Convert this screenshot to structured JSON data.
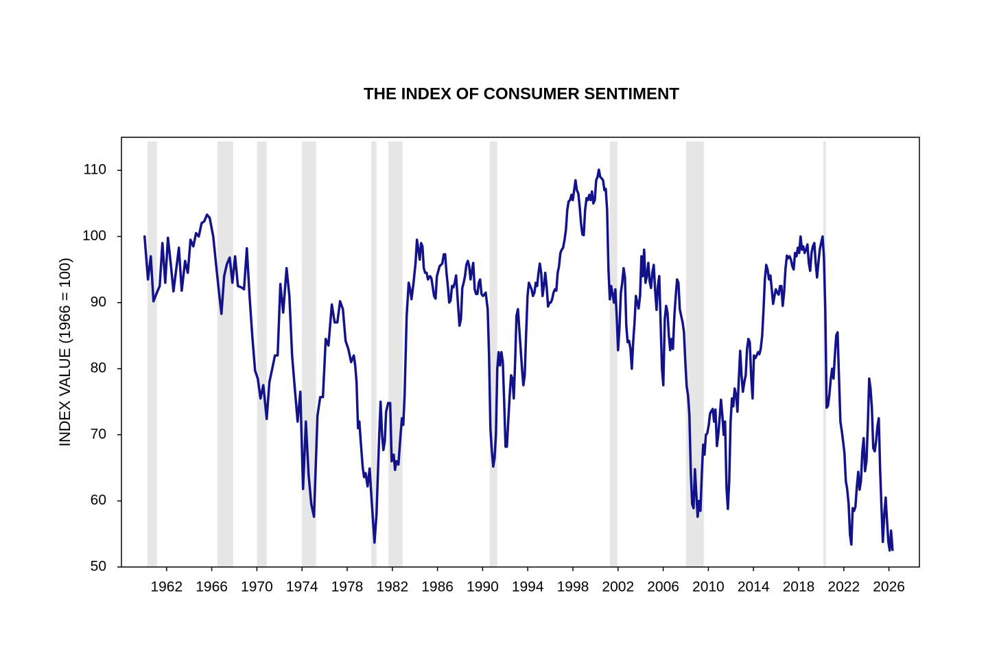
{
  "chart_data": {
    "type": "line",
    "title": "THE INDEX OF CONSUMER SENTIMENT",
    "y_label": "INDEX VALUE (1966 = 100)",
    "color": "#12128a",
    "shade_color": "#e6e6e6",
    "xlim": [
      1958,
      2028.7
    ],
    "ylim": [
      50,
      115
    ],
    "xticks": [
      1962,
      1966,
      1970,
      1974,
      1978,
      1982,
      1986,
      1990,
      1994,
      1998,
      2002,
      2006,
      2010,
      2014,
      2018,
      2022,
      2026
    ],
    "yticks": [
      50,
      60,
      70,
      80,
      90,
      100,
      110
    ],
    "shading": [
      [
        1960.3,
        1961.15
      ],
      [
        1966.5,
        1967.9
      ],
      [
        1970.02,
        1970.87
      ],
      [
        1973.98,
        1975.25
      ],
      [
        1980.12,
        1980.6
      ],
      [
        1981.64,
        1982.91
      ],
      [
        1990.63,
        1991.3
      ],
      [
        2001.27,
        2001.94
      ],
      [
        2008.02,
        2009.6
      ],
      [
        2020.18,
        2020.42
      ]
    ],
    "x": [
      1960.05,
      1960.35,
      1960.6,
      1960.84,
      1961.14,
      1961.39,
      1961.63,
      1961.88,
      1962.12,
      1962.36,
      1962.61,
      1962.85,
      1963.09,
      1963.34,
      1963.64,
      1963.88,
      1964.12,
      1964.37,
      1964.61,
      1964.85,
      1965.1,
      1965.34,
      1965.58,
      1965.82,
      1966.13,
      1966.43,
      1966.68,
      1966.86,
      1967.1,
      1967.34,
      1967.59,
      1967.83,
      1968.07,
      1968.32,
      1968.62,
      1968.86,
      1969.11,
      1969.35,
      1969.59,
      1969.84,
      1970.08,
      1970.32,
      1970.57,
      1970.87,
      1971.11,
      1971.36,
      1971.6,
      1971.84,
      1972.08,
      1972.33,
      1972.63,
      1972.88,
      1973.12,
      1973.36,
      1973.61,
      1973.85,
      1974.09,
      1974.34,
      1974.58,
      1974.82,
      1975.06,
      1975.37,
      1975.61,
      1975.85,
      1976.1,
      1976.34,
      1976.64,
      1976.89,
      1977.13,
      1977.37,
      1977.62,
      1977.86,
      1978.1,
      1978.35,
      1978.59,
      1978.71,
      1978.83,
      1978.96,
      1979.08,
      1979.2,
      1979.38,
      1979.5,
      1979.63,
      1979.81,
      1979.99,
      1980.17,
      1980.42,
      1980.6,
      1980.84,
      1980.96,
      1981.09,
      1981.21,
      1981.33,
      1981.45,
      1981.63,
      1981.81,
      1981.94,
      1982.12,
      1982.24,
      1982.36,
      1982.54,
      1982.73,
      1982.85,
      1982.97,
      1983.09,
      1983.27,
      1983.45,
      1983.58,
      1983.7,
      1983.88,
      1984.06,
      1984.18,
      1984.31,
      1984.43,
      1984.55,
      1984.67,
      1984.79,
      1984.91,
      1985.04,
      1985.16,
      1985.34,
      1985.46,
      1985.7,
      1985.83,
      1985.95,
      1986.19,
      1986.43,
      1986.56,
      1986.68,
      1986.8,
      1986.92,
      1987.04,
      1987.16,
      1987.29,
      1987.41,
      1987.53,
      1987.65,
      1987.77,
      1987.95,
      1988.08,
      1988.2,
      1988.32,
      1988.44,
      1988.56,
      1988.69,
      1988.81,
      1988.93,
      1989.05,
      1989.17,
      1989.3,
      1989.42,
      1989.54,
      1989.66,
      1989.78,
      1989.9,
      1990.03,
      1990.15,
      1990.27,
      1990.45,
      1990.57,
      1990.69,
      1990.81,
      1990.94,
      1991.06,
      1991.18,
      1991.3,
      1991.42,
      1991.54,
      1991.67,
      1991.79,
      1991.91,
      1992.03,
      1992.15,
      1992.27,
      1992.4,
      1992.52,
      1992.64,
      1992.76,
      1992.88,
      1993.0,
      1993.13,
      1993.25,
      1993.37,
      1993.49,
      1993.61,
      1993.73,
      1993.85,
      1993.98,
      1994.1,
      1994.22,
      1994.34,
      1994.46,
      1994.59,
      1994.71,
      1994.83,
      1994.95,
      1995.07,
      1995.19,
      1995.31,
      1995.43,
      1995.55,
      1995.67,
      1995.8,
      1995.92,
      1996.04,
      1996.16,
      1996.28,
      1996.4,
      1996.53,
      1996.65,
      1996.77,
      1996.89,
      1997.01,
      1997.13,
      1997.26,
      1997.38,
      1997.5,
      1997.62,
      1997.75,
      1997.87,
      1997.99,
      1998.11,
      1998.23,
      1998.35,
      1998.48,
      1998.6,
      1998.72,
      1998.84,
      1998.96,
      1999.08,
      1999.21,
      1999.33,
      1999.45,
      1999.57,
      1999.69,
      1999.81,
      1999.94,
      2000.06,
      2000.18,
      2000.3,
      2000.42,
      2000.54,
      2000.67,
      2000.79,
      2000.91,
      2001.03,
      2001.15,
      2001.27,
      2001.39,
      2001.52,
      2001.64,
      2001.76,
      2001.88,
      2002.0,
      2002.12,
      2002.25,
      2002.37,
      2002.49,
      2002.61,
      2002.73,
      2002.85,
      2002.98,
      2003.1,
      2003.22,
      2003.34,
      2003.46,
      2003.58,
      2003.7,
      2003.82,
      2003.95,
      2004.07,
      2004.19,
      2004.31,
      2004.43,
      2004.55,
      2004.68,
      2004.8,
      2004.92,
      2005.04,
      2005.16,
      2005.28,
      2005.41,
      2005.53,
      2005.65,
      2005.77,
      2005.89,
      2006.01,
      2006.14,
      2006.26,
      2006.38,
      2006.5,
      2006.62,
      2006.74,
      2006.86,
      2006.99,
      2007.11,
      2007.23,
      2007.35,
      2007.47,
      2007.59,
      2007.72,
      2007.84,
      2007.96,
      2008.08,
      2008.2,
      2008.32,
      2008.45,
      2008.57,
      2008.69,
      2008.81,
      2008.93,
      2009.05,
      2009.18,
      2009.3,
      2009.42,
      2009.54,
      2009.66,
      2009.78,
      2009.9,
      2010.03,
      2010.15,
      2010.27,
      2010.39,
      2010.51,
      2010.63,
      2010.76,
      2010.88,
      2011.0,
      2011.12,
      2011.24,
      2011.36,
      2011.48,
      2011.61,
      2011.73,
      2011.85,
      2011.97,
      2012.09,
      2012.21,
      2012.33,
      2012.46,
      2012.58,
      2012.7,
      2012.82,
      2012.94,
      2013.06,
      2013.19,
      2013.31,
      2013.43,
      2013.55,
      2013.67,
      2013.79,
      2013.92,
      2014.04,
      2014.16,
      2014.28,
      2014.4,
      2014.52,
      2014.64,
      2014.77,
      2014.89,
      2015.01,
      2015.13,
      2015.25,
      2015.37,
      2015.5,
      2015.62,
      2015.74,
      2015.86,
      2015.98,
      2016.1,
      2016.23,
      2016.35,
      2016.47,
      2016.59,
      2016.71,
      2016.83,
      2016.96,
      2017.08,
      2017.2,
      2017.32,
      2017.44,
      2017.56,
      2017.68,
      2017.81,
      2017.93,
      2018.05,
      2018.17,
      2018.29,
      2018.41,
      2018.53,
      2018.66,
      2018.78,
      2018.9,
      2019.02,
      2019.14,
      2019.26,
      2019.39,
      2019.51,
      2019.63,
      2019.75,
      2019.87,
      2019.99,
      2020.12,
      2020.24,
      2020.36,
      2020.48,
      2020.6,
      2020.72,
      2020.85,
      2020.97,
      2021.09,
      2021.21,
      2021.33,
      2021.45,
      2021.57,
      2021.7,
      2021.82,
      2021.94,
      2022.06,
      2022.18,
      2022.3,
      2022.43,
      2022.55,
      2022.67,
      2022.79,
      2022.91,
      2023.03,
      2023.15,
      2023.28,
      2023.4,
      2023.52,
      2023.64,
      2023.76,
      2023.88,
      2024.01,
      2024.13,
      2024.25,
      2024.37,
      2024.49,
      2024.61,
      2024.74,
      2024.86,
      2024.98,
      2025.1,
      2025.22,
      2025.34,
      2025.46,
      2025.59,
      2025.71,
      2025.83,
      2025.95,
      2026.07,
      2026.19,
      2026.32
    ],
    "values": [
      100,
      93.5,
      97,
      90.2,
      91.5,
      92.5,
      99,
      93,
      99.8,
      96,
      91.7,
      95,
      98.3,
      91.8,
      96.3,
      94.5,
      99.5,
      98.5,
      100.5,
      100,
      102,
      102.3,
      103.3,
      102.8,
      100,
      95,
      91,
      88.3,
      94,
      95.8,
      96.8,
      93,
      97,
      92.5,
      92.3,
      92,
      98.2,
      91,
      85,
      79.7,
      78.5,
      75.5,
      77.5,
      72.4,
      78,
      80,
      82,
      82,
      92.8,
      88.5,
      95.2,
      91,
      82,
      77,
      72,
      76.5,
      61.8,
      72,
      64,
      59.5,
      57.6,
      72.9,
      75.7,
      75.7,
      84.5,
      83.5,
      89.7,
      87,
      87,
      90.2,
      89,
      84.2,
      83,
      81,
      82,
      80.5,
      78,
      71,
      72,
      69,
      65,
      63.6,
      64.2,
      62.2,
      64.9,
      60,
      53.7,
      58,
      70,
      75,
      70,
      67.7,
      69,
      73.5,
      74.8,
      74.8,
      66,
      67,
      64.7,
      66,
      65.5,
      70,
      72.5,
      71.5,
      76,
      88,
      93,
      92,
      90.5,
      93,
      96,
      99.5,
      98,
      96.5,
      99,
      98.5,
      95.2,
      94.5,
      94.5,
      93.5,
      94,
      93.7,
      91,
      90.6,
      94,
      95.5,
      95.9,
      97.3,
      97.3,
      94.5,
      92.5,
      90,
      90.3,
      92.5,
      92.3,
      93,
      94.1,
      91,
      86.5,
      87.5,
      92.2,
      93,
      94,
      95.7,
      96.3,
      95.5,
      93.5,
      94.8,
      96,
      92,
      91.3,
      91.3,
      93,
      93.5,
      91.3,
      91,
      91.2,
      91.5,
      89,
      82,
      71,
      67.7,
      65.2,
      66.5,
      70,
      80,
      82.5,
      80.5,
      82.5,
      81,
      75,
      68.2,
      68.2,
      72,
      76,
      79,
      78.5,
      75.5,
      81,
      88,
      89,
      86,
      83,
      80,
      77.5,
      79,
      85,
      91,
      93,
      92.5,
      92,
      91,
      91.5,
      93,
      92.5,
      94.5,
      95.9,
      94.5,
      91,
      92.5,
      94.5,
      92.5,
      89.4,
      90,
      90,
      90.5,
      91.5,
      92,
      91.8,
      94.5,
      95.5,
      97.5,
      98,
      98.3,
      99.5,
      101,
      104,
      105.3,
      105.5,
      106.3,
      105.5,
      107,
      108.5,
      107,
      106.5,
      104.5,
      102,
      100.3,
      100.2,
      104,
      105.8,
      105.5,
      106.3,
      105.5,
      106.8,
      105,
      105.5,
      108.5,
      109,
      110.1,
      109,
      108.8,
      108.5,
      107,
      107.2,
      104,
      95,
      90.5,
      92.5,
      91.2,
      90,
      92,
      88,
      82.8,
      86,
      91.5,
      93,
      95.2,
      93.8,
      86.5,
      84,
      84.2,
      83,
      80,
      84,
      87,
      91,
      90,
      89.1,
      91,
      97,
      94,
      98,
      93,
      94,
      96,
      93.2,
      92.2,
      94.5,
      95.7,
      92,
      88.9,
      92.5,
      94,
      87,
      80,
      77.5,
      87.5,
      89.5,
      88.5,
      85,
      82.8,
      84.5,
      83,
      88,
      91,
      93.5,
      93,
      89,
      88,
      87,
      85.5,
      81,
      77.3,
      76,
      73,
      64.1,
      59.5,
      58.9,
      64.8,
      61.2,
      57.6,
      60,
      58.5,
      64,
      68.5,
      67,
      70,
      70.2,
      71.4,
      73.2,
      73.6,
      73.9,
      72,
      73.8,
      68.3,
      70,
      72.5,
      75.3,
      73,
      70,
      72,
      62,
      58.8,
      63,
      72,
      75.5,
      74.3,
      77,
      76,
      73.5,
      78.5,
      82.7,
      79,
      76.5,
      78,
      79,
      83,
      84.5,
      84,
      79,
      75.5,
      82,
      81.6,
      82,
      82.5,
      82.2,
      83,
      85,
      89,
      93.6,
      95.7,
      95,
      93.5,
      94.1,
      92,
      89.8,
      91,
      92,
      91.5,
      91.2,
      92.5,
      92.5,
      89.5,
      91.5,
      95,
      97.1,
      96.7,
      97,
      96.5,
      95.5,
      95,
      97.5,
      97,
      98.3,
      97.5,
      100,
      98,
      98.5,
      97.5,
      98,
      98.8,
      96,
      94.8,
      97.5,
      98.5,
      99,
      96,
      93.8,
      96,
      98,
      99,
      100,
      96.9,
      89,
      74.1,
      74.4,
      76,
      78.5,
      80,
      78.5,
      82,
      85,
      85.5,
      79,
      72,
      70.6,
      69,
      67.2,
      63,
      61.8,
      59.5,
      54.9,
      53.4,
      58.9,
      58.5,
      59.1,
      62,
      64.4,
      61.7,
      63,
      67.4,
      69.5,
      64.5,
      66,
      71.5,
      78.5,
      77,
      74,
      68,
      67.5,
      69,
      71.3,
      72.5,
      64.7,
      59,
      53.8,
      58,
      60.5,
      57,
      53.8,
      52.5,
      55.5,
      52.6
    ]
  }
}
